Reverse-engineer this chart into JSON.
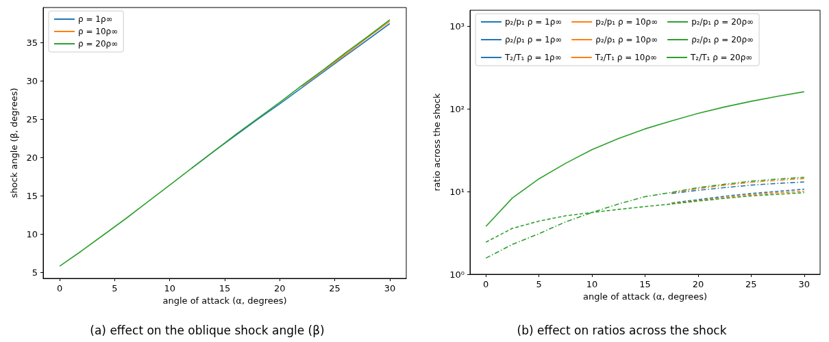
{
  "chart_data": [
    {
      "type": "line",
      "title": "(a) effect on the oblique shock angle (β)",
      "xlabel": "angle of attack (α, degrees)",
      "ylabel": "shock angle (β, degrees)",
      "x": [
        0,
        2,
        4,
        6,
        8,
        10,
        12,
        14,
        16,
        18,
        20,
        22,
        24,
        26,
        28,
        30
      ],
      "series": [
        {
          "name": "ρ = 1ρ∞",
          "color": "#1f77b4",
          "values": [
            null,
            null,
            null,
            null,
            null,
            null,
            18.6,
            20.8,
            22.9,
            25.0,
            27.0,
            29.1,
            31.2,
            33.3,
            35.4,
            37.5
          ]
        },
        {
          "name": "ρ = 10ρ∞",
          "color": "#ff7f0e",
          "values": [
            null,
            null,
            null,
            null,
            null,
            null,
            null,
            null,
            null,
            null,
            null,
            29.3,
            31.4,
            33.5,
            35.7,
            37.8
          ]
        },
        {
          "name": "ρ = 20ρ∞",
          "color": "#2ca02c",
          "values": [
            5.8,
            7.8,
            9.9,
            12.0,
            14.2,
            16.4,
            18.6,
            20.8,
            23.0,
            25.1,
            27.2,
            29.4,
            31.5,
            33.7,
            35.8,
            38.0
          ]
        }
      ],
      "xlim": [
        -1.5,
        31.5
      ],
      "xticks": [
        0,
        5,
        10,
        15,
        20,
        25,
        30
      ],
      "ylim": [
        4.2,
        39.6
      ],
      "yticks": [
        5,
        10,
        15,
        20,
        25,
        30,
        35
      ],
      "legend": "top left",
      "marker": "none",
      "line_style": "solid"
    },
    {
      "type": "line",
      "title": "(b) effect on ratios across the shock",
      "xlabel": "angle of attack (α, degrees)",
      "ylabel": "ratio across the shock",
      "x": [
        0,
        2.5,
        5,
        7.5,
        10,
        12.5,
        15,
        17.5,
        20,
        22.5,
        25,
        27.5,
        30
      ],
      "series": [
        {
          "name": "p₂/p₁ ρ = 1ρ∞",
          "color": "#1f77b4",
          "line_style": "solid",
          "values": [
            null,
            null,
            null,
            null,
            null,
            null,
            null,
            null,
            null,
            null,
            null,
            null,
            null
          ]
        },
        {
          "name": "p₂/p₁ ρ = 10ρ∞",
          "color": "#ff7f0e",
          "line_style": "solid",
          "values": [
            null,
            null,
            null,
            null,
            null,
            null,
            null,
            null,
            null,
            null,
            null,
            null,
            null
          ]
        },
        {
          "name": "p₂/p₁ ρ = 20ρ∞",
          "color": "#2ca02c",
          "line_style": "solid",
          "values": [
            3.8,
            8.4,
            14.3,
            22,
            32.3,
            44,
            57.6,
            72,
            88.7,
            106,
            124,
            143,
            162
          ]
        },
        {
          "name": "ρ₂/ρ₁ ρ = 1ρ∞",
          "color": "#1f77b4",
          "line_style": "dashed",
          "values": [
            null,
            null,
            null,
            null,
            null,
            null,
            null,
            7.3,
            8.0,
            8.8,
            9.5,
            10.1,
            10.7
          ]
        },
        {
          "name": "ρ₂/ρ₁ ρ = 10ρ∞",
          "color": "#ff7f0e",
          "line_style": "dashed",
          "values": [
            null,
            null,
            null,
            null,
            null,
            null,
            null,
            7.2,
            7.8,
            8.5,
            9.2,
            9.7,
            10.1
          ]
        },
        {
          "name": "ρ₂/ρ₁ ρ = 20ρ∞",
          "color": "#2ca02c",
          "line_style": "dashed",
          "values": [
            2.45,
            3.6,
            4.4,
            5.1,
            5.6,
            6.1,
            6.6,
            7.1,
            7.7,
            8.3,
            8.9,
            9.3,
            9.7
          ]
        },
        {
          "name": "T₂/T₁ ρ = 1ρ∞",
          "color": "#1f77b4",
          "line_style": "dashdot",
          "values": [
            null,
            null,
            null,
            null,
            null,
            null,
            null,
            9.5,
            10.4,
            11.2,
            12.0,
            12.6,
            13.1
          ]
        },
        {
          "name": "T₂/T₁ ρ = 10ρ∞",
          "color": "#ff7f0e",
          "line_style": "dashdot",
          "values": [
            null,
            null,
            null,
            null,
            null,
            null,
            null,
            9.7,
            10.9,
            12.0,
            13.0,
            13.7,
            14.4
          ]
        },
        {
          "name": "T₂/T₁ ρ = 20ρ∞",
          "color": "#2ca02c",
          "line_style": "dashdot",
          "values": [
            1.57,
            2.3,
            3.1,
            4.3,
            5.6,
            7.1,
            8.7,
            9.8,
            11.2,
            12.3,
            13.4,
            14.2,
            14.9
          ]
        }
      ],
      "xlim": [
        -1.5,
        31.5
      ],
      "xticks": [
        0,
        5,
        10,
        15,
        20,
        25,
        30
      ],
      "ylim": [
        1,
        1570
      ],
      "yticks": [
        {
          "value": 1,
          "label": "10⁰"
        },
        {
          "value": 10,
          "label": "10¹"
        },
        {
          "value": 100,
          "label": "10²"
        },
        {
          "value": 1000,
          "label": "10³"
        }
      ],
      "log": "y",
      "legend": "top left",
      "marker": "none"
    }
  ]
}
